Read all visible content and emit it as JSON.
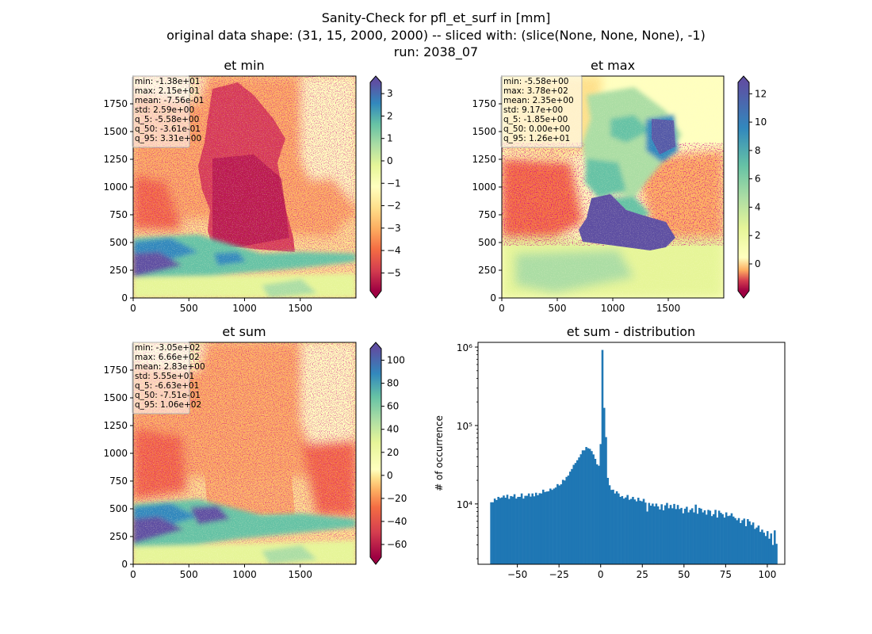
{
  "figure": {
    "title_lines": [
      "Sanity-Check for pfl_et_surf in [mm]",
      "original data shape: (31, 15, 2000, 2000) -- sliced with: (slice(None, None, None), -1)",
      "run: 2038_07"
    ]
  },
  "colors": {
    "colormap": [
      "#9e0142",
      "#d53e4f",
      "#f46d43",
      "#fdae61",
      "#fee08b",
      "#ffffbf",
      "#e6f598",
      "#abdda4",
      "#66c2a5",
      "#3288bd",
      "#5e4fa2"
    ],
    "histogram_bar": "#1f77b4"
  },
  "chart_data": [
    {
      "type": "heatmap",
      "title": "et min",
      "x_ticks": [
        0,
        500,
        1000,
        1500
      ],
      "y_ticks": [
        0,
        250,
        500,
        750,
        1000,
        1250,
        1500,
        1750
      ],
      "xlim": [
        0,
        2000
      ],
      "ylim": [
        0,
        2000
      ],
      "colorbar": {
        "min": -5.8,
        "max": 3.5,
        "ticks": [
          -5,
          -4,
          -3,
          -2,
          -1,
          0,
          1,
          2,
          3
        ],
        "tick_labels": [
          "−5",
          "−4",
          "−3",
          "−2",
          "−1",
          "0",
          "1",
          "2",
          "3"
        ],
        "extend": "both"
      },
      "stats": [
        "min: -1.38e+01",
        "max: 2.15e+01",
        "mean: -7.56e-01",
        "std: 2.59e+00",
        "q_5: -5.58e+00",
        "q_50: -3.61e-01",
        "q_95: 3.31e+00"
      ]
    },
    {
      "type": "heatmap",
      "title": "et max",
      "x_ticks": [
        0,
        500,
        1000,
        1500
      ],
      "y_ticks": [
        0,
        250,
        500,
        750,
        1000,
        1250,
        1500,
        1750
      ],
      "xlim": [
        0,
        2000
      ],
      "ylim": [
        0,
        2000
      ],
      "colorbar": {
        "min": -1.9,
        "max": 12.8,
        "ticks": [
          0,
          2,
          4,
          6,
          8,
          10,
          12
        ],
        "tick_labels": [
          "0",
          "2",
          "4",
          "6",
          "8",
          "10",
          "12"
        ],
        "extend": "both"
      },
      "stats": [
        "min: -5.58e+00",
        "max: 3.78e+02",
        "mean: 2.35e+00",
        "std: 9.17e+00",
        "q_5: -1.85e+00",
        "q_50: 0.00e+00",
        "q_95: 1.26e+01"
      ]
    },
    {
      "type": "heatmap",
      "title": "et sum",
      "x_ticks": [
        0,
        500,
        1000,
        1500
      ],
      "y_ticks": [
        0,
        250,
        500,
        750,
        1000,
        1250,
        1500,
        1750
      ],
      "xlim": [
        0,
        2000
      ],
      "ylim": [
        0,
        2000
      ],
      "colorbar": {
        "min": -71,
        "max": 110,
        "ticks": [
          -60,
          -40,
          -20,
          0,
          20,
          40,
          60,
          80,
          100
        ],
        "tick_labels": [
          "−60",
          "−40",
          "−20",
          "0",
          "20",
          "40",
          "60",
          "80",
          "100"
        ],
        "extend": "both"
      },
      "stats": [
        "min: -3.05e+02",
        "max: 6.66e+02",
        "mean: 2.83e+00",
        "std: 5.55e+01",
        "q_5: -6.63e+01",
        "q_50: -7.51e-01",
        "q_95: 1.06e+02"
      ]
    },
    {
      "type": "bar",
      "title": "et sum - distribution",
      "ylabel": "# of occurrence",
      "y_scale": "log",
      "xlim": [
        -73.6,
        110.5
      ],
      "ylim": [
        1700,
        1150000
      ],
      "x_ticks": [
        -50,
        -25,
        0,
        25,
        50,
        75,
        100
      ],
      "x_tick_labels": [
        "−50",
        "−25",
        "0",
        "25",
        "50",
        "75",
        "100"
      ],
      "y_ticks": [
        10000,
        100000,
        1000000
      ],
      "y_tick_labels": [
        "10⁴",
        "10⁵",
        "10⁶"
      ],
      "bin_range": [
        -66.3,
        106.0
      ],
      "counts": [
        10500,
        10500,
        11700,
        11200,
        12300,
        11900,
        12100,
        12800,
        12000,
        13100,
        11600,
        12600,
        12400,
        13300,
        11700,
        12300,
        12300,
        13600,
        11700,
        12700,
        12700,
        13600,
        12400,
        13600,
        12500,
        13900,
        12900,
        13700,
        13600,
        15200,
        14200,
        14400,
        14500,
        15700,
        15100,
        15700,
        16200,
        17900,
        17200,
        17800,
        20300,
        19900,
        22100,
        23000,
        25800,
        27900,
        31500,
        33300,
        36100,
        39200,
        43000,
        48200,
        48200,
        53200,
        51400,
        50400,
        47200,
        42800,
        37600,
        32000,
        30700,
        58000,
        920000,
        168000,
        71200,
        21500,
        17300,
        15100,
        15200,
        13600,
        14500,
        13600,
        12300,
        12600,
        11700,
        12100,
        13000,
        11300,
        11600,
        12300,
        11400,
        10800,
        12000,
        11000,
        10800,
        11600,
        10400,
        8000,
        10300,
        9500,
        10100,
        9300,
        10100,
        9300,
        8500,
        9900,
        8300,
        9600,
        10300,
        8800,
        9700,
        8800,
        10000,
        8600,
        9700,
        8600,
        8900,
        7600,
        8700,
        9200,
        7800,
        8400,
        8800,
        7800,
        9800,
        7500,
        8900,
        8700,
        7800,
        8300,
        7300,
        8400,
        8200,
        7000,
        7400,
        8400,
        6700,
        8200,
        7700,
        7400,
        6700,
        7800,
        7000,
        7100,
        7600,
        6900,
        6600,
        6200,
        6600,
        5700,
        6200,
        6500,
        5200,
        6400,
        6000,
        5400,
        5800,
        4800,
        5000,
        5300,
        4400,
        4700,
        4300,
        3900,
        4500,
        3600,
        4200,
        3000,
        4600,
        3100
      ]
    }
  ]
}
